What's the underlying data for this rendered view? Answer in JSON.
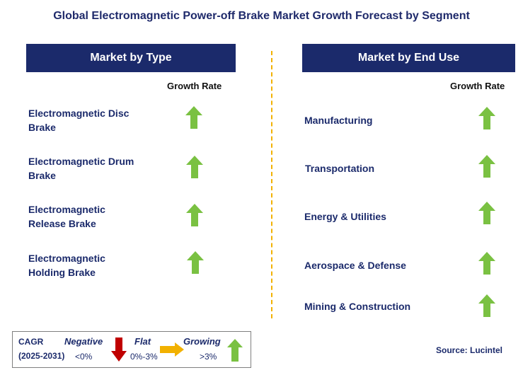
{
  "title": "Global Electromagnetic Power-off Brake Market Growth Forecast by Segment",
  "left_panel": {
    "header": "Market by Type",
    "growth_rate_label": "Growth Rate",
    "items": [
      {
        "line1": "Electromagnetic Disc",
        "line2": "Brake",
        "trend": "growing"
      },
      {
        "line1": "Electromagnetic Drum",
        "line2": "Brake",
        "trend": "growing"
      },
      {
        "line1": "Electromagnetic",
        "line2": "Release Brake",
        "trend": "growing"
      },
      {
        "line1": "Electromagnetic",
        "line2": "Holding Brake",
        "trend": "growing"
      }
    ]
  },
  "right_panel": {
    "header": "Market by End Use",
    "growth_rate_label": "Growth Rate",
    "items": [
      {
        "label": "Manufacturing",
        "trend": "growing"
      },
      {
        "label": "Transportation",
        "trend": "growing"
      },
      {
        "label": "Energy & Utilities",
        "trend": "growing"
      },
      {
        "label": "Aerospace & Defense",
        "trend": "growing"
      },
      {
        "label": "Mining & Construction",
        "trend": "growing"
      }
    ]
  },
  "legend": {
    "cagr_label": "CAGR",
    "period": "(2025-2031)",
    "negative_label": "Negative",
    "negative_range": "<0%",
    "flat_label": "Flat",
    "flat_range": "0%-3%",
    "growing_label": "Growing",
    "growing_range": ">3%"
  },
  "source": "Source: Lucintel",
  "colors": {
    "header_bg": "#1b2a6b",
    "text": "#1b2a6b",
    "arrow_up": "#7ac142",
    "arrow_down": "#c00000",
    "arrow_flat": "#f2b100",
    "divider": "#f2b100"
  }
}
